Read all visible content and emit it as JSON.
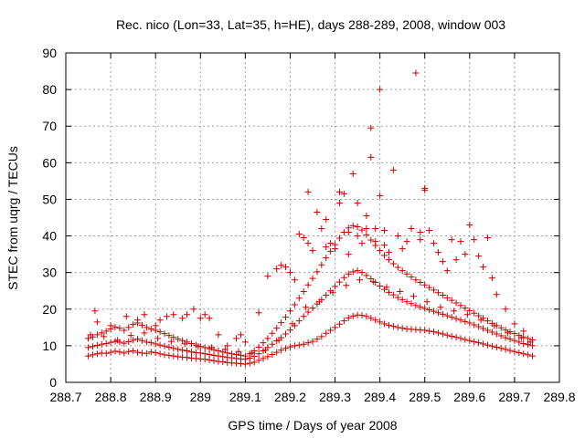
{
  "chart_data": {
    "type": "scatter",
    "title": "Rec. nico (Lon=33, Lat=35, h=HE), days 288-289, 2008, window 003",
    "xlabel": "GPS time / Days of year 2008",
    "ylabel": "STEC from uqrg / TECUs",
    "xlim": [
      288.7,
      289.8
    ],
    "ylim": [
      0,
      90
    ],
    "xticks": [
      288.7,
      288.8,
      288.9,
      289,
      289.1,
      289.2,
      289.3,
      289.4,
      289.5,
      289.6,
      289.7,
      289.8
    ],
    "xtick_labels": [
      "288.7",
      "288.8",
      "288.9",
      "289",
      "289.1",
      "289.2",
      "289.3",
      "289.4",
      "289.5",
      "289.6",
      "289.7",
      "289.8"
    ],
    "yticks": [
      0,
      10,
      20,
      30,
      40,
      50,
      60,
      70,
      80,
      90
    ],
    "ytick_labels": [
      "0",
      "10",
      "20",
      "30",
      "40",
      "50",
      "60",
      "70",
      "80",
      "90"
    ],
    "grid": true,
    "legend": "none",
    "marker": "plus",
    "color": "#cc0000",
    "series": [
      {
        "x": [
          288.75,
          288.76,
          288.77,
          288.78,
          288.79,
          288.8,
          288.81,
          288.82,
          288.83,
          288.84,
          288.85,
          288.86,
          288.87,
          288.88,
          288.89,
          288.9,
          288.91,
          288.92,
          288.93,
          288.94,
          288.95,
          288.96,
          288.97,
          288.98,
          288.99,
          289.0,
          289.01,
          289.02,
          289.03,
          289.04,
          289.05,
          289.06,
          289.07,
          289.08,
          289.09,
          289.1,
          289.11,
          289.12,
          289.13,
          289.14,
          289.15,
          289.16,
          289.17,
          289.18,
          289.19,
          289.2,
          289.21,
          289.22,
          289.23,
          289.24,
          289.25,
          289.26,
          289.27,
          289.28,
          289.29,
          289.3,
          289.31,
          289.32,
          289.33,
          289.34,
          289.35,
          289.36,
          289.37,
          289.38,
          289.39,
          289.4,
          289.41,
          289.42,
          289.43,
          289.44,
          289.45,
          289.46,
          289.47,
          289.48,
          289.49,
          289.5,
          289.51,
          289.52,
          289.53,
          289.54,
          289.55,
          289.56,
          289.57,
          289.58,
          289.59,
          289.6,
          289.61,
          289.62,
          289.63,
          289.64,
          289.65,
          289.66,
          289.67,
          289.68,
          289.69,
          289.7,
          289.71,
          289.72,
          289.73,
          289.74
        ],
        "y": [
          7.2,
          7.5,
          7.8,
          8.0,
          7.9,
          8.2,
          8.5,
          8.3,
          8.0,
          8.4,
          8.6,
          8.2,
          8.0,
          7.9,
          8.3,
          8.1,
          7.8,
          7.5,
          7.4,
          7.2,
          7.0,
          6.9,
          6.8,
          6.6,
          6.5,
          6.4,
          6.3,
          6.1,
          5.9,
          5.7,
          5.6,
          5.4,
          5.3,
          5.2,
          5.1,
          5.0,
          5.2,
          5.5,
          6.0,
          6.5,
          7.0,
          7.6,
          8.2,
          8.8,
          9.3,
          9.7,
          10.0,
          10.2,
          10.4,
          10.8,
          11.2,
          11.8,
          12.5,
          13.4,
          14.2,
          15.0,
          15.9,
          16.8,
          17.6,
          18.1,
          18.4,
          18.3,
          18.0,
          17.5,
          17.0,
          16.5,
          16.0,
          15.6,
          15.3,
          15.0,
          14.8,
          14.6,
          14.5,
          14.4,
          14.3,
          14.2,
          14.0,
          13.8,
          13.5,
          13.2,
          12.9,
          12.6,
          12.3,
          12.0,
          11.7,
          11.4,
          11.1,
          10.8,
          10.5,
          10.2,
          9.9,
          9.6,
          9.3,
          9.0,
          8.7,
          8.4,
          8.1,
          7.8,
          7.5,
          7.2
        ]
      },
      {
        "x": [
          288.75,
          288.76,
          288.77,
          288.78,
          288.79,
          288.8,
          288.81,
          288.82,
          288.83,
          288.84,
          288.85,
          288.86,
          288.87,
          288.88,
          288.89,
          288.9,
          288.91,
          288.92,
          288.93,
          288.94,
          288.95,
          288.96,
          288.97,
          288.98,
          288.99,
          289.0,
          289.01,
          289.02,
          289.03,
          289.04,
          289.05,
          289.06,
          289.07,
          289.08,
          289.09,
          289.1,
          289.11,
          289.12,
          289.13,
          289.14,
          289.15,
          289.16,
          289.17,
          289.18,
          289.19,
          289.2,
          289.21,
          289.22,
          289.23,
          289.24,
          289.25,
          289.26,
          289.27,
          289.28,
          289.29,
          289.3,
          289.31,
          289.32,
          289.33,
          289.34,
          289.35,
          289.36,
          289.37,
          289.38,
          289.39,
          289.4,
          289.41,
          289.42,
          289.43,
          289.44,
          289.45,
          289.46,
          289.47,
          289.48,
          289.49,
          289.5,
          289.51,
          289.52,
          289.53,
          289.54,
          289.55,
          289.56,
          289.57,
          289.58,
          289.59,
          289.6,
          289.61,
          289.62,
          289.63,
          289.64,
          289.65,
          289.66,
          289.67,
          289.68,
          289.69,
          289.7,
          289.71,
          289.72,
          289.73,
          289.74
        ],
        "y": [
          9.5,
          9.8,
          10.1,
          10.4,
          10.6,
          10.9,
          11.2,
          11.0,
          10.7,
          11.1,
          11.5,
          11.8,
          11.4,
          11.0,
          10.8,
          10.5,
          10.2,
          9.9,
          9.6,
          9.3,
          9.0,
          8.8,
          8.6,
          8.3,
          8.1,
          8.0,
          7.8,
          7.6,
          7.4,
          7.2,
          7.0,
          6.8,
          6.7,
          6.5,
          6.4,
          6.3,
          6.6,
          7.1,
          7.8,
          8.6,
          9.5,
          10.4,
          11.3,
          12.2,
          13.2,
          14.3,
          15.5,
          16.8,
          18.0,
          19.2,
          20.3,
          21.4,
          22.6,
          23.8,
          25.0,
          26.2,
          27.4,
          28.6,
          29.6,
          30.2,
          30.5,
          30.0,
          29.2,
          28.3,
          27.3,
          26.3,
          25.4,
          24.6,
          23.9,
          23.2,
          22.6,
          22.0,
          21.5,
          21.0,
          20.6,
          20.2,
          19.8,
          19.4,
          19.0,
          18.6,
          18.2,
          17.8,
          17.4,
          17.0,
          16.6,
          16.2,
          15.7,
          15.2,
          14.7,
          14.2,
          13.7,
          13.2,
          12.7,
          12.2,
          11.8,
          11.4,
          11.0,
          10.6,
          10.3,
          10.0
        ]
      },
      {
        "x": [
          288.75,
          288.76,
          288.77,
          288.78,
          288.79,
          288.8,
          288.81,
          288.82,
          288.83,
          288.84,
          288.85,
          288.86,
          288.87,
          288.88,
          288.89,
          288.9,
          288.91,
          288.92,
          288.93,
          288.94,
          288.95,
          288.96,
          288.97,
          288.98,
          288.99,
          289.0,
          289.01,
          289.02,
          289.03,
          289.04,
          289.05,
          289.06,
          289.07,
          289.08,
          289.09,
          289.1,
          289.11,
          289.12,
          289.13,
          289.14,
          289.15,
          289.16,
          289.17,
          289.18,
          289.19,
          289.2,
          289.21,
          289.22,
          289.23,
          289.24,
          289.25,
          289.26,
          289.27,
          289.28,
          289.29,
          289.3,
          289.31,
          289.32,
          289.33,
          289.34,
          289.35,
          289.36,
          289.37,
          289.38,
          289.39,
          289.4,
          289.41,
          289.42,
          289.43,
          289.44,
          289.45,
          289.46,
          289.47,
          289.48,
          289.49,
          289.5,
          289.51,
          289.52,
          289.53,
          289.54,
          289.55,
          289.56,
          289.57,
          289.58,
          289.59,
          289.6,
          289.61,
          289.62,
          289.63,
          289.64,
          289.65,
          289.66,
          289.67,
          289.68,
          289.69,
          289.7,
          289.71,
          289.72,
          289.73,
          289.74
        ],
        "y": [
          12.0,
          12.4,
          13.0,
          13.5,
          14.0,
          14.6,
          15.1,
          14.8,
          14.2,
          15.0,
          15.8,
          16.2,
          15.6,
          15.0,
          14.6,
          14.2,
          13.8,
          13.3,
          12.8,
          12.3,
          11.8,
          11.4,
          11.0,
          10.6,
          10.2,
          9.8,
          9.5,
          9.2,
          8.9,
          8.6,
          8.3,
          8.0,
          7.8,
          7.6,
          7.4,
          7.2,
          7.8,
          8.6,
          9.6,
          10.8,
          12.0,
          13.4,
          14.8,
          16.3,
          17.8,
          19.5,
          21.2,
          23.0,
          24.8,
          26.6,
          28.4,
          30.2,
          32.1,
          34.0,
          35.8,
          37.6,
          39.4,
          41.0,
          42.2,
          42.8,
          42.5,
          41.6,
          40.3,
          38.9,
          37.4,
          36.0,
          34.7,
          33.5,
          32.4,
          31.4,
          30.5,
          29.6,
          28.8,
          28.0,
          27.3,
          26.6,
          25.9,
          25.2,
          24.5,
          23.8,
          23.1,
          22.4,
          21.7,
          21.0,
          20.3,
          19.6,
          18.9,
          18.2,
          17.5,
          16.8,
          16.1,
          15.5,
          14.9,
          14.3,
          13.8,
          13.3,
          12.8,
          12.4,
          12.0,
          11.6
        ]
      },
      {
        "x": [
          288.755,
          288.785,
          288.815,
          288.845,
          288.875,
          288.905,
          288.935,
          288.965,
          288.995,
          289.025,
          289.055,
          289.085,
          289.115,
          289.145,
          289.175,
          289.205,
          289.235,
          289.265,
          289.295,
          289.325,
          289.355,
          289.385,
          289.415,
          289.445,
          289.475,
          289.505,
          289.535,
          289.565,
          289.595,
          289.625,
          289.655,
          289.685,
          289.715,
          289.735
        ],
        "y": [
          13.0,
          12.5,
          11.5,
          12.8,
          13.5,
          12.0,
          11.2,
          10.5,
          9.8,
          9.5,
          9.0,
          8.4,
          8.0,
          8.8,
          11.5,
          16.0,
          20.5,
          22.0,
          24.5,
          26.5,
          28.0,
          27.5,
          26.0,
          24.8,
          23.5,
          22.0,
          20.5,
          19.5,
          18.5,
          17.0,
          15.5,
          13.5,
          12.2,
          11.0
        ]
      },
      {
        "x": [
          288.765,
          288.77,
          288.8,
          288.835,
          288.86,
          288.875,
          288.9,
          288.91,
          288.925,
          288.94,
          288.96,
          288.97,
          288.985,
          289.0,
          289.01,
          289.02,
          289.04,
          289.06,
          289.08,
          289.09,
          289.1,
          289.13,
          289.15,
          289.17,
          289.18,
          289.19,
          289.2,
          289.21,
          289.22,
          289.23,
          289.24,
          289.24,
          289.25,
          289.26,
          289.27,
          289.28,
          289.28,
          289.29,
          289.3,
          289.31,
          289.31,
          289.32,
          289.33,
          289.33,
          289.34,
          289.35,
          289.35,
          289.36,
          289.37,
          289.37,
          289.38,
          289.38,
          289.39,
          289.39,
          289.4,
          289.4,
          289.41,
          289.41,
          289.42,
          289.43,
          289.44,
          289.45,
          289.46,
          289.47,
          289.48,
          289.49,
          289.49,
          289.5,
          289.5,
          289.51,
          289.52,
          289.53,
          289.54,
          289.55,
          289.56,
          289.57,
          289.58,
          289.59,
          289.6,
          289.61,
          289.62,
          289.63,
          289.64,
          289.65,
          289.66,
          289.68,
          289.7,
          289.72
        ],
        "y": [
          19.5,
          16.5,
          15.5,
          18.0,
          17.0,
          18.5,
          15.5,
          17.0,
          18.0,
          18.5,
          17.5,
          18.5,
          20.0,
          17.5,
          18.5,
          17.5,
          13.0,
          10.0,
          12.0,
          13.0,
          11.0,
          19.0,
          29.0,
          31.0,
          32.0,
          31.5,
          30.0,
          28.0,
          40.5,
          39.5,
          52.0,
          38.0,
          36.0,
          46.5,
          42.0,
          37.0,
          44.5,
          38.0,
          36.5,
          52.0,
          49.0,
          51.5,
          41.0,
          35.0,
          57.0,
          49.0,
          40.0,
          38.0,
          45.5,
          42.0,
          61.5,
          69.5,
          42.0,
          38.5,
          80.0,
          51.0,
          41.5,
          37.5,
          35.5,
          58.0,
          40.0,
          36.5,
          38.5,
          42.0,
          84.5,
          39.0,
          41.0,
          53.0,
          52.5,
          41.5,
          38.0,
          35.5,
          33.0,
          30.5,
          39.0,
          33.5,
          38.5,
          35.0,
          43.0,
          39.0,
          34.5,
          31.5,
          39.5,
          28.5,
          24.0,
          20.0,
          16.0,
          14.0
        ]
      }
    ]
  }
}
